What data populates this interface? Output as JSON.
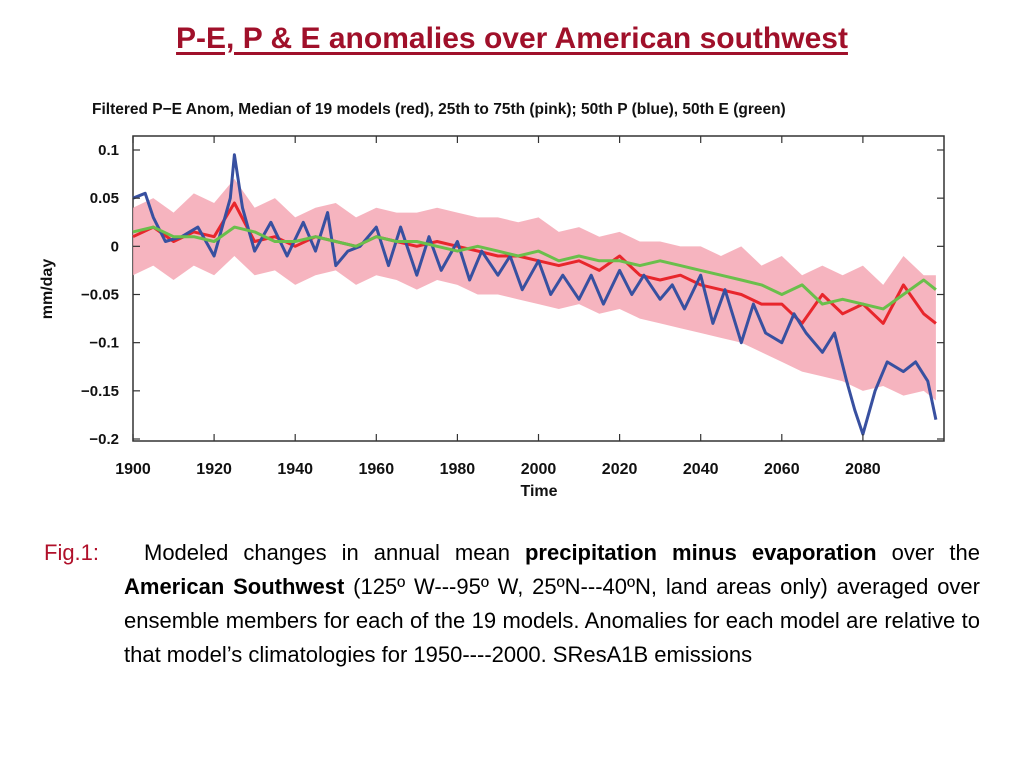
{
  "slide": {
    "title": "P-E, P & E anomalies over American southwest"
  },
  "caption": {
    "label": "Fig.1:",
    "t1": "Modeled changes in annual mean ",
    "b1": "precipitation minus evaporation",
    "t2": " over the ",
    "b2": "American Southwest",
    "t3": " (125º W---95º W, 25ºN---40ºN, land areas only) averaged over ensemble members for each of the 19  models. Anomalies for each model are relative to that model’s climatologies  for 1950----2000. SResA1B emissions"
  },
  "chart_data": {
    "type": "line",
    "title": "Filtered P−E Anom, Median of 19 models (red), 25th to 75th (pink); 50th P (blue), 50th E (green)",
    "xlabel": "Time",
    "ylabel": "mm/day",
    "xlim": [
      1900,
      2100
    ],
    "ylim": [
      -0.2,
      0.11
    ],
    "x_ticks": [
      "1900",
      "1920",
      "1940",
      "1960",
      "1980",
      "2000",
      "2020",
      "2040",
      "2060",
      "2080"
    ],
    "y_ticks": [
      "0.1",
      "0.05",
      "0",
      "−0.05",
      "−0.1",
      "−0.15",
      "−0.2"
    ],
    "y_tick_values": [
      0.1,
      0.05,
      0,
      -0.05,
      -0.1,
      -0.15,
      -0.2
    ],
    "grid": false,
    "colors": {
      "red": "#e8262c",
      "pink": "#f4a7b4",
      "blue": "#3850a0",
      "green": "#6abf4b"
    },
    "band_x": [
      1900,
      1905,
      1910,
      1915,
      1920,
      1925,
      1930,
      1935,
      1940,
      1945,
      1950,
      1955,
      1960,
      1965,
      1970,
      1975,
      1980,
      1985,
      1990,
      1995,
      2000,
      2005,
      2010,
      2015,
      2020,
      2025,
      2030,
      2035,
      2040,
      2045,
      2050,
      2055,
      2060,
      2065,
      2070,
      2075,
      2080,
      2085,
      2090,
      2095,
      2098
    ],
    "band_upper": [
      0.04,
      0.05,
      0.035,
      0.055,
      0.045,
      0.07,
      0.04,
      0.05,
      0.03,
      0.04,
      0.045,
      0.03,
      0.04,
      0.035,
      0.035,
      0.04,
      0.035,
      0.03,
      0.03,
      0.025,
      0.03,
      0.015,
      0.02,
      0.01,
      0.015,
      0.005,
      0.005,
      0.0,
      0.0,
      -0.01,
      0.0,
      -0.02,
      -0.01,
      -0.03,
      -0.02,
      -0.03,
      -0.02,
      -0.04,
      -0.01,
      -0.03,
      -0.03
    ],
    "band_lower": [
      -0.03,
      -0.02,
      -0.035,
      -0.02,
      -0.03,
      -0.01,
      -0.03,
      -0.025,
      -0.04,
      -0.03,
      -0.025,
      -0.04,
      -0.03,
      -0.035,
      -0.045,
      -0.035,
      -0.04,
      -0.05,
      -0.05,
      -0.055,
      -0.06,
      -0.065,
      -0.06,
      -0.07,
      -0.065,
      -0.075,
      -0.08,
      -0.085,
      -0.09,
      -0.095,
      -0.1,
      -0.11,
      -0.12,
      -0.13,
      -0.135,
      -0.14,
      -0.15,
      -0.145,
      -0.155,
      -0.15,
      -0.16
    ],
    "series": [
      {
        "name": "red",
        "x": [
          1900,
          1905,
          1910,
          1915,
          1920,
          1925,
          1930,
          1935,
          1940,
          1945,
          1950,
          1955,
          1960,
          1965,
          1970,
          1975,
          1980,
          1985,
          1990,
          1995,
          2000,
          2005,
          2010,
          2015,
          2020,
          2025,
          2030,
          2035,
          2040,
          2045,
          2050,
          2055,
          2060,
          2065,
          2070,
          2075,
          2080,
          2085,
          2090,
          2095,
          2098
        ],
        "y": [
          0.01,
          0.02,
          0.005,
          0.015,
          0.01,
          0.045,
          0.005,
          0.01,
          0.0,
          0.01,
          0.005,
          0.0,
          0.01,
          0.005,
          0.0,
          0.005,
          0.0,
          -0.005,
          -0.01,
          -0.01,
          -0.015,
          -0.02,
          -0.015,
          -0.025,
          -0.01,
          -0.03,
          -0.035,
          -0.03,
          -0.04,
          -0.045,
          -0.05,
          -0.06,
          -0.06,
          -0.08,
          -0.05,
          -0.07,
          -0.06,
          -0.08,
          -0.04,
          -0.07,
          -0.08
        ]
      },
      {
        "name": "blue",
        "x": [
          1900,
          1903,
          1905,
          1908,
          1912,
          1916,
          1920,
          1924,
          1925,
          1927,
          1930,
          1934,
          1938,
          1942,
          1945,
          1948,
          1950,
          1953,
          1956,
          1960,
          1963,
          1966,
          1970,
          1973,
          1976,
          1980,
          1983,
          1986,
          1990,
          1993,
          1996,
          2000,
          2003,
          2006,
          2010,
          2013,
          2016,
          2020,
          2023,
          2026,
          2030,
          2033,
          2036,
          2040,
          2043,
          2046,
          2050,
          2053,
          2056,
          2060,
          2063,
          2066,
          2070,
          2073,
          2076,
          2078,
          2080,
          2083,
          2086,
          2090,
          2093,
          2096,
          2098
        ],
        "y": [
          0.05,
          0.055,
          0.03,
          0.005,
          0.01,
          0.02,
          -0.01,
          0.05,
          0.095,
          0.04,
          -0.005,
          0.025,
          -0.01,
          0.025,
          -0.005,
          0.035,
          -0.02,
          -0.005,
          0.0,
          0.02,
          -0.02,
          0.02,
          -0.03,
          0.01,
          -0.025,
          0.005,
          -0.035,
          -0.005,
          -0.03,
          -0.01,
          -0.045,
          -0.015,
          -0.05,
          -0.03,
          -0.055,
          -0.03,
          -0.06,
          -0.025,
          -0.05,
          -0.03,
          -0.055,
          -0.04,
          -0.065,
          -0.03,
          -0.08,
          -0.045,
          -0.1,
          -0.06,
          -0.09,
          -0.1,
          -0.07,
          -0.09,
          -0.11,
          -0.09,
          -0.14,
          -0.17,
          -0.195,
          -0.15,
          -0.12,
          -0.13,
          -0.12,
          -0.14,
          -0.18
        ]
      },
      {
        "name": "green",
        "x": [
          1900,
          1905,
          1910,
          1915,
          1920,
          1925,
          1930,
          1935,
          1940,
          1945,
          1950,
          1955,
          1960,
          1965,
          1970,
          1975,
          1980,
          1985,
          1990,
          1995,
          2000,
          2005,
          2010,
          2015,
          2020,
          2025,
          2030,
          2035,
          2040,
          2045,
          2050,
          2055,
          2060,
          2065,
          2070,
          2075,
          2080,
          2085,
          2090,
          2095,
          2098
        ],
        "y": [
          0.015,
          0.02,
          0.01,
          0.01,
          0.005,
          0.02,
          0.015,
          0.005,
          0.005,
          0.01,
          0.005,
          0.0,
          0.01,
          0.005,
          0.005,
          0.0,
          -0.005,
          0.0,
          -0.005,
          -0.01,
          -0.005,
          -0.015,
          -0.01,
          -0.015,
          -0.015,
          -0.02,
          -0.015,
          -0.02,
          -0.025,
          -0.03,
          -0.035,
          -0.04,
          -0.05,
          -0.04,
          -0.06,
          -0.055,
          -0.06,
          -0.065,
          -0.05,
          -0.035,
          -0.045
        ]
      }
    ]
  }
}
